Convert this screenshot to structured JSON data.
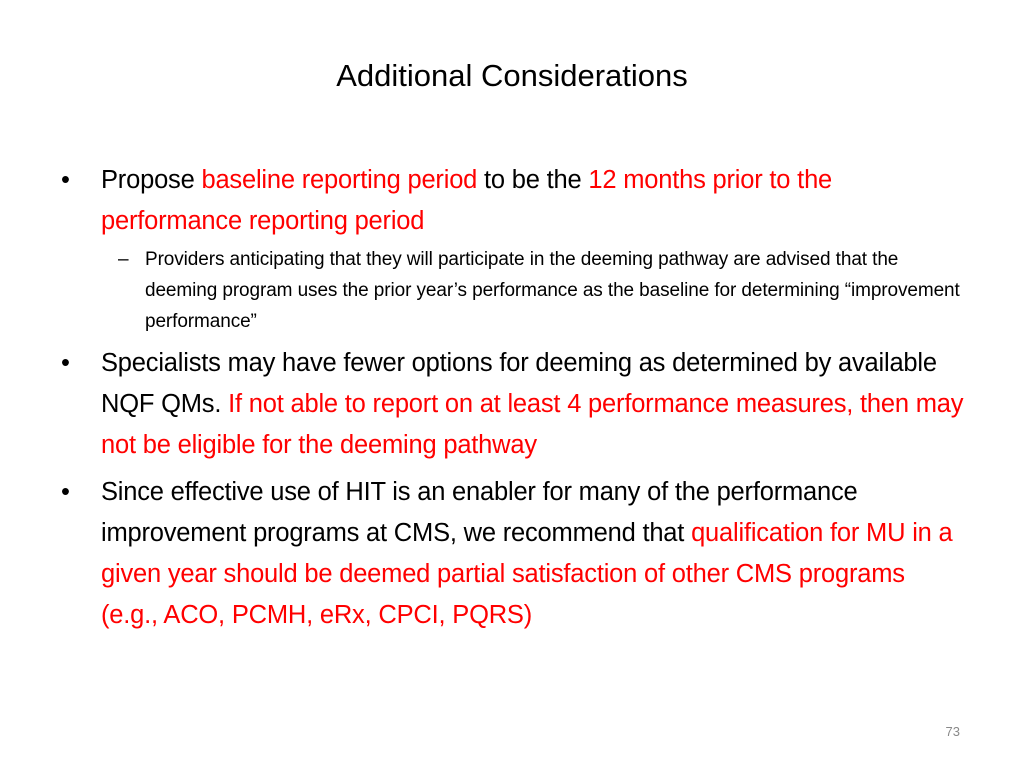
{
  "slide": {
    "title": "Additional Considerations",
    "page_number": "73",
    "colors": {
      "text": "#000000",
      "highlight": "#ff0000",
      "page_number": "#898989"
    },
    "bullet_1": {
      "marker": "•",
      "part_1": "Propose ",
      "part_2": "baseline reporting period",
      "part_3": " to be the  ",
      "part_4": "12 months prior to the performance reporting period",
      "sub": {
        "marker": "–",
        "text": "Providers anticipating that they will participate in the deeming pathway are advised that the deeming program uses the prior year’s performance as the baseline for determining “improvement performance”"
      }
    },
    "bullet_2": {
      "marker": "•",
      "part_1": "Specialists may have fewer options for deeming as determined by available NQF QMs.  ",
      "part_2": "If not able to report on at least 4 performance measures, then may not be eligible for the deeming pathway"
    },
    "bullet_3": {
      "marker": "•",
      "part_1": "Since effective use of HIT is an enabler for many of the performance improvement programs at CMS, we recommend that ",
      "part_2": "qualification for MU in a given year should be deemed partial satisfaction of other CMS programs (e.g., ACO, PCMH, eRx, CPCI, PQRS)"
    }
  }
}
